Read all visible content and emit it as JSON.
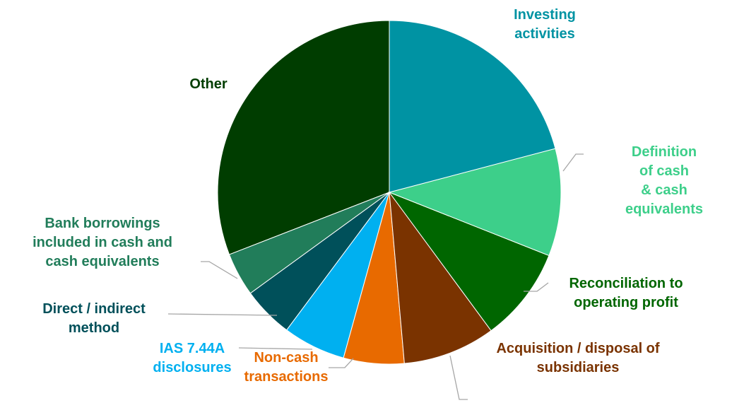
{
  "chart_data": {
    "type": "pie",
    "categories": [
      "Investing\nactivities",
      "Definition of cash\n& cash\nequivalents",
      "Reconciliation to\noperating profit",
      "Acquisition / disposal of\nsubsidiaries",
      "Non-cash\ntransactions",
      "IAS 7.44A\ndisclosures",
      "Direct / indirect\nmethod",
      "Bank borrowings\nincluded in cash and\ncash equivalents",
      "Other"
    ],
    "values": [
      20.9,
      10.1,
      8.9,
      8.7,
      5.7,
      5.9,
      4.8,
      4.1,
      30.9
    ],
    "colors": [
      "#0093a3",
      "#3dcf8a",
      "#006600",
      "#7a3300",
      "#e86a00",
      "#00b0f0",
      "#00505a",
      "#217d5a",
      "#003d00"
    ]
  }
}
